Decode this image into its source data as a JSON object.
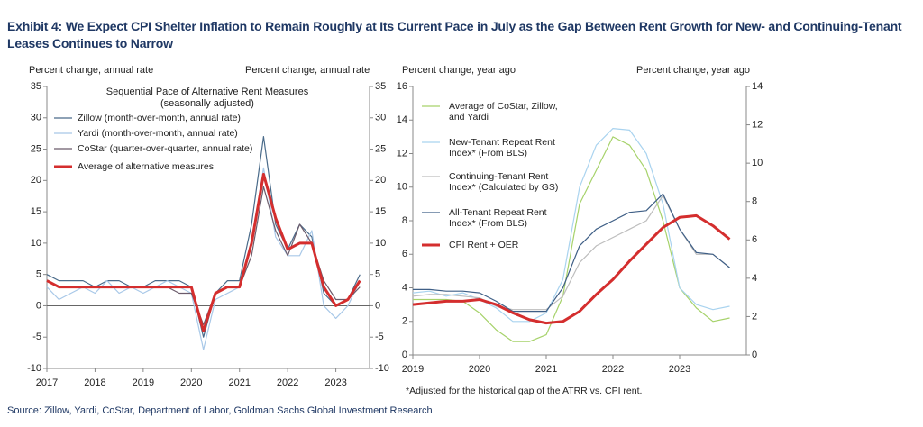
{
  "title": "Exhibit 4: We Expect CPI Shelter Inflation to Remain Roughly at Its Current Pace in July as the Gap Between Rent Growth for New- and Continuing-Tenant Leases Continues to Narrow",
  "source": "Source: Zillow, Yardi, CoStar, Department of Labor, Goldman Sachs Global Investment Research",
  "chart_data": [
    {
      "type": "line",
      "y_label": "Percent change, annual rate",
      "y2_label": "Percent change, annual rate",
      "legend_title": "Sequential Pace of Alternative Rent Measures (seasonally adjusted)",
      "x": [
        2017.0,
        2017.25,
        2017.5,
        2017.75,
        2018.0,
        2018.25,
        2018.5,
        2018.75,
        2019.0,
        2019.25,
        2019.5,
        2019.75,
        2020.0,
        2020.25,
        2020.5,
        2020.75,
        2021.0,
        2021.25,
        2021.5,
        2021.75,
        2022.0,
        2022.25,
        2022.5,
        2022.75,
        2023.0,
        2023.25,
        2023.5
      ],
      "xlim": [
        2017,
        2023.7
      ],
      "xticks": [
        2017,
        2018,
        2019,
        2020,
        2021,
        2022,
        2023
      ],
      "ylim": [
        -10,
        35
      ],
      "yticks": [
        -10,
        -5,
        0,
        5,
        10,
        15,
        20,
        25,
        30,
        35
      ],
      "y2lim": [
        -10,
        35
      ],
      "y2ticks": [
        -10,
        -5,
        0,
        5,
        10,
        15,
        20,
        25,
        30,
        35
      ],
      "series": [
        {
          "name": "Zillow (month-over-month, annual rate)",
          "color": "#4a6b8a",
          "width": 1.2,
          "values": [
            5,
            4,
            4,
            4,
            3,
            4,
            4,
            3,
            3,
            4,
            4,
            4,
            3,
            -5,
            2,
            4,
            4,
            13,
            27,
            13,
            9,
            13,
            11,
            2,
            0,
            1,
            5
          ]
        },
        {
          "name": "Yardi (month-over-month, annual rate)",
          "color": "#a8c8e8",
          "width": 1.2,
          "values": [
            3,
            1,
            2,
            3,
            2,
            4,
            2,
            3,
            2,
            3,
            4,
            3,
            2,
            -7,
            1,
            2,
            3,
            10,
            22,
            11,
            8,
            8,
            12,
            0,
            -2,
            0,
            4
          ]
        },
        {
          "name": "CoStar (quarter-over-quarter, annual rate)",
          "color": "#6b5b6b",
          "width": 1.2,
          "values": [
            4,
            3,
            3,
            3,
            3,
            3,
            3,
            3,
            3,
            3,
            3,
            2,
            2,
            -3,
            2,
            3,
            3,
            8,
            19,
            12,
            8,
            13,
            10,
            4,
            1,
            1,
            3
          ]
        },
        {
          "name": "Average of alternative measures",
          "color": "#d42e2e",
          "width": 3,
          "values": [
            4,
            3,
            3,
            3,
            3,
            3,
            3,
            3,
            3,
            3,
            3,
            3,
            3,
            -4,
            2,
            3,
            3,
            10,
            21,
            14,
            9,
            10,
            10,
            3,
            0,
            1,
            4
          ]
        }
      ]
    },
    {
      "type": "line",
      "y_label": "Percent change, year ago",
      "y2_label": "Percent change, year ago",
      "footnote": "*Adjusted for the historical gap of the ATRR vs. CPI rent.",
      "x": [
        2019.0,
        2019.25,
        2019.5,
        2019.75,
        2020.0,
        2020.25,
        2020.5,
        2020.75,
        2021.0,
        2021.25,
        2021.5,
        2021.75,
        2022.0,
        2022.25,
        2022.5,
        2022.75,
        2023.0,
        2023.25,
        2023.5,
        2023.75
      ],
      "xlim": [
        2019,
        2024
      ],
      "xticks": [
        2019,
        2020,
        2021,
        2022,
        2023
      ],
      "ylim": [
        0,
        16
      ],
      "yticks": [
        0,
        2,
        4,
        6,
        8,
        10,
        12,
        14,
        16
      ],
      "y2lim": [
        0,
        14
      ],
      "y2ticks": [
        0,
        2,
        4,
        6,
        8,
        10,
        12,
        14
      ],
      "series": [
        {
          "name": "Average of CoStar, Zillow, and Yardi",
          "color": "#a6d26a",
          "width": 1.2,
          "values": [
            3.3,
            3.3,
            3.3,
            3.2,
            2.5,
            1.5,
            0.8,
            0.8,
            1.2,
            3.5,
            9,
            11,
            13,
            12.5,
            11,
            8,
            4,
            2.8,
            2,
            2.2
          ]
        },
        {
          "name": "New-Tenant Repeat Rent Index* (From BLS)",
          "color": "#a9d3ef",
          "width": 1.2,
          "values": [
            3.7,
            3.8,
            3.5,
            3.7,
            3.3,
            2.8,
            2,
            2,
            2.5,
            4.5,
            10,
            12.5,
            13.5,
            13.4,
            12,
            9,
            4,
            3,
            2.7,
            2.9
          ]
        },
        {
          "name": "Continuing-Tenant Rent Index* (Calculated by GS)",
          "color": "#bdbdbd",
          "width": 1.2,
          "values": [
            3.5,
            3.6,
            3.6,
            3.5,
            3.4,
            2.9,
            2.7,
            2.7,
            2.7,
            3.5,
            5.5,
            6.5,
            7,
            7.5,
            8,
            9.5,
            7.5,
            6,
            6,
            5.2
          ]
        },
        {
          "name": "All-Tenant Repeat Rent Index* (From BLS)",
          "color": "#3f5f86",
          "width": 1.2,
          "values": [
            3.9,
            3.9,
            3.8,
            3.8,
            3.7,
            3.2,
            2.6,
            2.6,
            2.6,
            4,
            6.5,
            7.5,
            8,
            8.5,
            8.6,
            9.6,
            7.5,
            6.1,
            6,
            5.2
          ]
        },
        {
          "name": "CPI Rent + OER",
          "color": "#d42e2e",
          "width": 3,
          "values": [
            3.0,
            3.1,
            3.2,
            3.2,
            3.3,
            3.0,
            2.5,
            2.1,
            1.9,
            2.0,
            2.6,
            3.6,
            4.5,
            5.6,
            6.6,
            7.6,
            8.2,
            8.3,
            7.7,
            6.9
          ]
        }
      ]
    }
  ]
}
